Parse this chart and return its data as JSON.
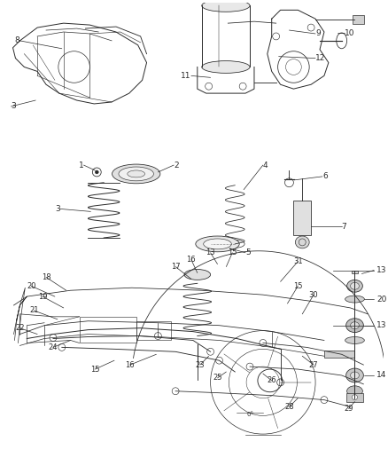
{
  "bg_color": "#ffffff",
  "fig_width": 4.38,
  "fig_height": 5.33,
  "dpi": 100,
  "line_color": "#2a2a2a",
  "label_fontsize": 6.5,
  "lw": 0.7
}
